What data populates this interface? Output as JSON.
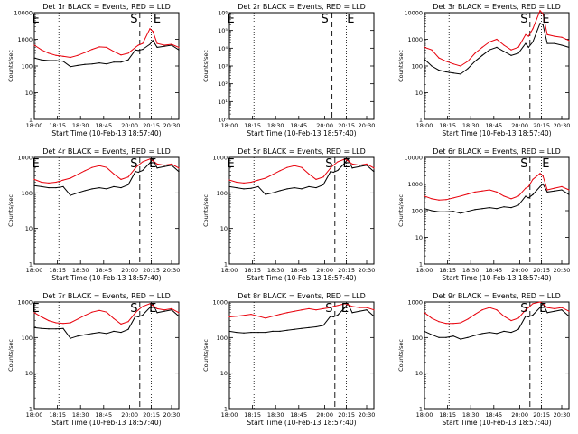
{
  "x_ticks": [
    "18:00",
    "18:15",
    "18:30",
    "18:45",
    "20:00",
    "20:15",
    "20:30"
  ],
  "xlabel": "Start Time (10-Feb-13 18:57:40)",
  "ylabel": "Counts/sec",
  "colors": {
    "events": "#000000",
    "lld": "#e8000b",
    "axes": "#000000",
    "background": "#ffffff"
  },
  "chart_data": [
    {
      "type": "line",
      "title": "Det 1r BLACK = Events, RED = LLD",
      "yscale": "log",
      "ylim": [
        1,
        10000
      ],
      "y_ticks": [
        "1",
        "10",
        "100",
        "1000",
        "10000"
      ],
      "x": [
        0,
        5,
        10,
        15,
        20,
        25,
        30,
        35,
        40,
        45,
        50,
        55,
        60,
        65,
        70,
        72,
        75,
        80,
        82,
        85,
        90,
        95,
        100
      ],
      "series": [
        {
          "name": "BLACK = Events",
          "values": [
            200,
            170,
            160,
            160,
            150,
            95,
            105,
            115,
            120,
            130,
            120,
            140,
            140,
            170,
            400,
            380,
            420,
            650,
            900,
            500,
            550,
            600,
            400
          ]
        },
        {
          "name": "RED = LLD",
          "values": [
            600,
            400,
            300,
            250,
            230,
            210,
            250,
            320,
            420,
            520,
            500,
            350,
            260,
            300,
            500,
            600,
            700,
            2500,
            2000,
            700,
            600,
            650,
            500
          ]
        }
      ],
      "markers": [
        {
          "label": "E",
          "x": 1
        },
        {
          "label": "S",
          "x": 69
        },
        {
          "label": "E",
          "x": 85
        }
      ]
    },
    {
      "type": "line",
      "title": "Det 2r BLACK = Events, RED = LLD",
      "yscale": "log",
      "ylim": [
        1,
        1000000
      ],
      "y_ticks": [
        "10⁰",
        "10¹",
        "10²",
        "10³",
        "10⁴",
        "10⁵",
        "10⁶"
      ],
      "x": [],
      "series": [],
      "markers": [
        {
          "label": "E",
          "x": 1
        },
        {
          "label": "S",
          "x": 66
        },
        {
          "label": "E",
          "x": 84
        }
      ]
    },
    {
      "type": "line",
      "title": "Det 3r BLACK = Events, RED = LLD",
      "yscale": "log",
      "ylim": [
        1,
        10000
      ],
      "y_ticks": [
        "1",
        "10",
        "100",
        "1000",
        "10000"
      ],
      "x": [
        0,
        5,
        10,
        15,
        20,
        25,
        30,
        35,
        40,
        45,
        50,
        55,
        60,
        65,
        70,
        72,
        75,
        80,
        82,
        85,
        90,
        95,
        100
      ],
      "series": [
        {
          "name": "BLACK = Events",
          "values": [
            180,
            100,
            70,
            60,
            55,
            50,
            80,
            150,
            250,
            400,
            500,
            350,
            250,
            300,
            700,
            500,
            800,
            4000,
            3500,
            700,
            700,
            600,
            500
          ]
        },
        {
          "name": "RED = LLD",
          "values": [
            500,
            400,
            200,
            150,
            120,
            100,
            150,
            300,
            500,
            800,
            1000,
            600,
            400,
            500,
            1500,
            1300,
            2500,
            12000,
            9000,
            1500,
            1300,
            1200,
            900
          ]
        }
      ],
      "markers": [
        {
          "label": "S",
          "x": 69
        },
        {
          "label": "E",
          "x": 84
        }
      ]
    },
    {
      "type": "line",
      "title": "Det 4r BLACK = Events, RED = LLD",
      "yscale": "log",
      "ylim": [
        1,
        1000
      ],
      "y_ticks": [
        "1",
        "10",
        "100",
        "1000"
      ],
      "x": [
        0,
        5,
        10,
        15,
        20,
        25,
        30,
        35,
        40,
        45,
        50,
        55,
        60,
        65,
        70,
        72,
        75,
        80,
        82,
        85,
        90,
        95,
        100
      ],
      "series": [
        {
          "name": "BLACK = Events",
          "values": [
            160,
            150,
            140,
            140,
            150,
            85,
            100,
            115,
            130,
            140,
            130,
            150,
            140,
            170,
            400,
            380,
            430,
            700,
            900,
            500,
            550,
            600,
            400
          ]
        },
        {
          "name": "RED = LLD",
          "values": [
            240,
            200,
            190,
            200,
            230,
            260,
            330,
            420,
            520,
            580,
            520,
            340,
            240,
            280,
            500,
            600,
            750,
            900,
            800,
            650,
            600,
            650,
            500
          ]
        }
      ],
      "markers": [
        {
          "label": "E",
          "x": 1
        },
        {
          "label": "S",
          "x": 69
        },
        {
          "label": "E",
          "x": 82
        }
      ]
    },
    {
      "type": "line",
      "title": "Det 5r BLACK = Events, RED = LLD",
      "yscale": "log",
      "ylim": [
        1,
        1000
      ],
      "y_ticks": [
        "1",
        "10",
        "100",
        "1000"
      ],
      "x": [
        0,
        5,
        10,
        15,
        20,
        25,
        30,
        35,
        40,
        45,
        50,
        55,
        60,
        65,
        70,
        72,
        75,
        80,
        82,
        85,
        90,
        95,
        100
      ],
      "series": [
        {
          "name": "BLACK = Events",
          "values": [
            150,
            140,
            130,
            135,
            150,
            90,
            100,
            115,
            130,
            140,
            130,
            150,
            140,
            170,
            400,
            380,
            430,
            700,
            900,
            500,
            550,
            600,
            400
          ]
        },
        {
          "name": "RED = LLD",
          "values": [
            230,
            200,
            190,
            200,
            230,
            260,
            330,
            420,
            520,
            580,
            520,
            340,
            240,
            280,
            500,
            600,
            750,
            900,
            800,
            650,
            600,
            650,
            500
          ]
        }
      ],
      "markers": [
        {
          "label": "E",
          "x": 1
        },
        {
          "label": "S",
          "x": 69
        },
        {
          "label": "E",
          "x": 81
        }
      ]
    },
    {
      "type": "line",
      "title": "Det 6r BLACK = Events, RED = LLD",
      "yscale": "log",
      "ylim": [
        1,
        10000
      ],
      "y_ticks": [
        "1",
        "10",
        "100",
        "1000",
        "10000"
      ],
      "x": [
        0,
        5,
        10,
        15,
        20,
        25,
        30,
        35,
        40,
        45,
        50,
        55,
        60,
        65,
        70,
        72,
        75,
        80,
        82,
        85,
        90,
        95,
        100
      ],
      "series": [
        {
          "name": "BLACK = Events",
          "values": [
            120,
            100,
            90,
            90,
            95,
            80,
            95,
            110,
            120,
            130,
            120,
            140,
            130,
            160,
            350,
            300,
            400,
            800,
            1000,
            500,
            550,
            600,
            400
          ]
        },
        {
          "name": "RED = LLD",
          "values": [
            350,
            280,
            250,
            260,
            300,
            350,
            420,
            500,
            550,
            600,
            500,
            350,
            280,
            350,
            700,
            800,
            1500,
            2500,
            2000,
            600,
            700,
            800,
            600
          ]
        }
      ],
      "markers": [
        {
          "label": "S",
          "x": 69
        },
        {
          "label": "E",
          "x": 84
        }
      ]
    },
    {
      "type": "line",
      "title": "Det 7r BLACK = Events, RED = LLD",
      "yscale": "log",
      "ylim": [
        1,
        1000
      ],
      "y_ticks": [
        "1",
        "10",
        "100",
        "1000"
      ],
      "x": [
        0,
        5,
        10,
        15,
        20,
        25,
        30,
        35,
        40,
        45,
        50,
        55,
        60,
        65,
        70,
        72,
        75,
        80,
        82,
        85,
        90,
        95,
        100
      ],
      "series": [
        {
          "name": "BLACK = Events",
          "values": [
            190,
            180,
            175,
            175,
            180,
            95,
            110,
            120,
            130,
            140,
            130,
            150,
            140,
            170,
            400,
            380,
            430,
            700,
            900,
            500,
            550,
            600,
            400
          ]
        },
        {
          "name": "RED = LLD",
          "values": [
            500,
            380,
            300,
            260,
            250,
            260,
            330,
            420,
            520,
            580,
            520,
            340,
            240,
            280,
            500,
            600,
            750,
            900,
            800,
            650,
            600,
            650,
            500
          ]
        }
      ],
      "markers": [
        {
          "label": "E",
          "x": 1
        },
        {
          "label": "S",
          "x": 69
        },
        {
          "label": "E",
          "x": 82
        }
      ]
    },
    {
      "type": "line",
      "title": "Det 8r BLACK = Events, RED = LLD",
      "yscale": "log",
      "ylim": [
        1,
        1000
      ],
      "y_ticks": [
        "1",
        "10",
        "100",
        "1000"
      ],
      "x": [
        0,
        5,
        10,
        15,
        20,
        25,
        30,
        35,
        40,
        45,
        50,
        55,
        60,
        65,
        70,
        72,
        75,
        80,
        82,
        85,
        90,
        95,
        100
      ],
      "series": [
        {
          "name": "BLACK = Events",
          "values": [
            150,
            140,
            135,
            140,
            140,
            140,
            150,
            150,
            160,
            170,
            180,
            190,
            200,
            220,
            400,
            380,
            430,
            700,
            900,
            500,
            550,
            600,
            400
          ]
        },
        {
          "name": "RED = LLD",
          "values": [
            380,
            400,
            420,
            450,
            400,
            350,
            400,
            450,
            500,
            550,
            600,
            650,
            600,
            650,
            700,
            750,
            800,
            900,
            850,
            750,
            700,
            700,
            600
          ]
        }
      ],
      "markers": [
        {
          "label": "S",
          "x": 69
        },
        {
          "label": "E",
          "x": 80
        }
      ]
    },
    {
      "type": "line",
      "title": "Det 9r BLACK = Events, RED = LLD",
      "yscale": "log",
      "ylim": [
        1,
        1000
      ],
      "y_ticks": [
        "1",
        "10",
        "100",
        "1000"
      ],
      "x": [
        0,
        5,
        10,
        15,
        20,
        25,
        30,
        35,
        40,
        45,
        50,
        55,
        60,
        65,
        70,
        72,
        75,
        80,
        82,
        85,
        90,
        95,
        100
      ],
      "series": [
        {
          "name": "BLACK = Events",
          "values": [
            150,
            120,
            100,
            100,
            110,
            90,
            100,
            115,
            130,
            140,
            130,
            150,
            140,
            170,
            400,
            380,
            430,
            700,
            900,
            500,
            550,
            600,
            400
          ]
        },
        {
          "name": "RED = LLD",
          "values": [
            500,
            350,
            280,
            250,
            250,
            260,
            330,
            450,
            600,
            700,
            600,
            400,
            300,
            350,
            600,
            700,
            900,
            1000,
            900,
            700,
            650,
            700,
            550
          ]
        }
      ],
      "markers": [
        {
          "label": "S",
          "x": 69
        },
        {
          "label": "E",
          "x": 82
        }
      ]
    }
  ]
}
